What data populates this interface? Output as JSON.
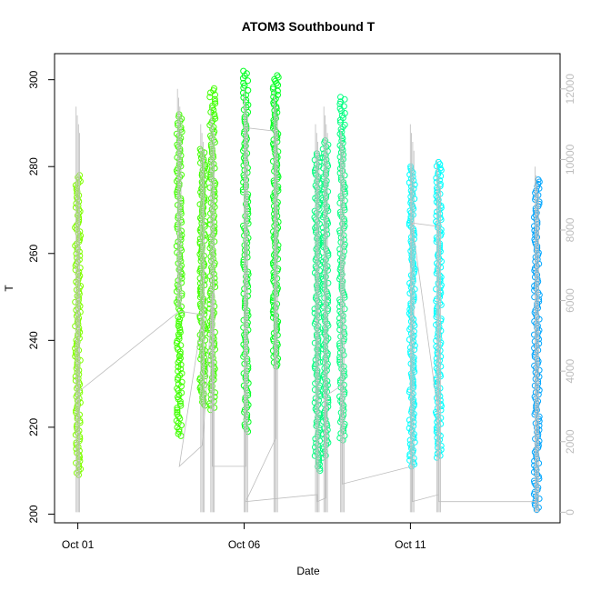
{
  "chart_data": {
    "type": "scatter",
    "title": "ATOM3 Southbound T",
    "xlabel": "Date",
    "ylabel": "T",
    "x_ticks": [
      "Oct 01",
      "Oct 06",
      "Oct 11"
    ],
    "x_tick_days": [
      0,
      5,
      10
    ],
    "xlim_days": [
      -0.7,
      14.5
    ],
    "ylim": [
      198,
      306
    ],
    "y_ticks": [
      200,
      220,
      240,
      260,
      280,
      300
    ],
    "y2_ticks": [
      0,
      2000,
      4000,
      6000,
      8000,
      10000,
      12000
    ],
    "y2lim": [
      -300,
      13000
    ],
    "grid": false,
    "legend": "none",
    "series": [
      {
        "color": "#80ff00",
        "segments": [
          {
            "day": 0.0,
            "ymin": 209,
            "ymax": 278
          }
        ]
      },
      {
        "color": "#40ff00",
        "segments": [
          {
            "day": 3.05,
            "ymin": 218,
            "ymax": 292
          },
          {
            "day": 3.75,
            "ymin": 225,
            "ymax": 284
          },
          {
            "day": 4.05,
            "ymin": 224,
            "ymax": 298
          }
        ]
      },
      {
        "color": "#00ff20",
        "segments": [
          {
            "day": 5.05,
            "ymin": 219,
            "ymax": 302
          },
          {
            "day": 5.95,
            "ymin": 234,
            "ymax": 301
          }
        ]
      },
      {
        "color": "#00ff80",
        "segments": [
          {
            "day": 7.2,
            "ymin": 210,
            "ymax": 283
          },
          {
            "day": 7.45,
            "ymin": 213,
            "ymax": 286
          },
          {
            "day": 7.95,
            "ymin": 217,
            "ymax": 296
          }
        ]
      },
      {
        "color": "#00ffff",
        "segments": [
          {
            "day": 10.05,
            "ymin": 211,
            "ymax": 280
          },
          {
            "day": 10.85,
            "ymin": 213,
            "ymax": 281
          }
        ]
      },
      {
        "color": "#00a6ff",
        "segments": [
          {
            "day": 13.8,
            "ymin": 201,
            "ymax": 277
          }
        ]
      }
    ],
    "secondary_series": {
      "color": "#bdbdbd",
      "note": "",
      "spikes": [
        {
          "day": 0.0,
          "low": 0,
          "high": 11500
        },
        {
          "day": 3.05,
          "low": 5800,
          "high": 12000
        },
        {
          "day": 3.75,
          "low": 0,
          "high": 11000
        },
        {
          "day": 4.05,
          "low": 0,
          "high": 11500
        },
        {
          "day": 5.05,
          "low": 0,
          "high": 12000
        },
        {
          "day": 5.95,
          "low": 0,
          "high": 12000
        },
        {
          "day": 7.2,
          "low": 0,
          "high": 11000
        },
        {
          "day": 7.45,
          "low": 0,
          "high": 11500
        },
        {
          "day": 7.95,
          "low": 0,
          "high": 11000
        },
        {
          "day": 10.05,
          "low": 0,
          "high": 11000
        },
        {
          "day": 10.85,
          "low": 0,
          "high": 10000
        },
        {
          "day": 13.8,
          "low": 0,
          "high": 9800
        }
      ],
      "path": [
        [
          0.0,
          3400
        ],
        [
          3.05,
          5700
        ],
        [
          3.75,
          5600
        ],
        [
          3.05,
          1300
        ],
        [
          3.75,
          1900
        ],
        [
          4.05,
          6200
        ],
        [
          4.05,
          1300
        ],
        [
          5.05,
          1300
        ],
        [
          5.05,
          10900
        ],
        [
          5.95,
          10800
        ],
        [
          5.95,
          2100
        ],
        [
          5.05,
          300
        ],
        [
          7.2,
          500
        ],
        [
          7.2,
          300
        ],
        [
          7.45,
          400
        ],
        [
          7.45,
          3300
        ],
        [
          7.95,
          3600
        ],
        [
          7.95,
          800
        ],
        [
          10.05,
          1300
        ],
        [
          10.05,
          300
        ],
        [
          10.85,
          500
        ],
        [
          10.85,
          8100
        ],
        [
          10.05,
          8200
        ],
        [
          10.85,
          2700
        ],
        [
          10.85,
          300
        ],
        [
          13.8,
          300
        ]
      ]
    }
  }
}
